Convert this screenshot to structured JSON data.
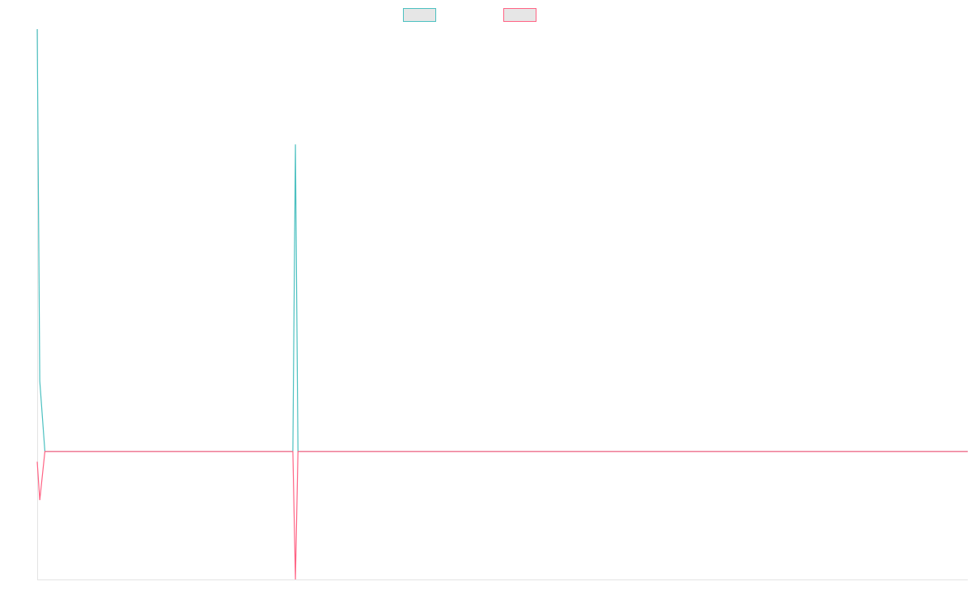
{
  "chart_data": {
    "type": "line",
    "title": "",
    "xlabel": "",
    "ylabel": "",
    "grid": false,
    "legend": "top-center",
    "x_count": 365,
    "ylim": [
      -1,
      3.3
    ],
    "series": [
      {
        "color": "#4bc0c0",
        "legend_fill": "#e6e6e6",
        "points": [
          [
            0,
            3.3
          ],
          [
            1,
            0.55
          ],
          [
            3,
            0
          ],
          [
            99,
            0
          ],
          [
            100,
            0
          ],
          [
            101,
            2.4
          ],
          [
            102,
            0
          ],
          [
            364,
            0
          ]
        ]
      },
      {
        "color": "#ff6384",
        "legend_fill": "#e6e6e6",
        "points": [
          [
            0,
            -0.08
          ],
          [
            1,
            -0.38
          ],
          [
            3,
            0
          ],
          [
            99,
            0
          ],
          [
            100,
            0
          ],
          [
            101,
            -1.0
          ],
          [
            102,
            0
          ],
          [
            364,
            0
          ]
        ]
      }
    ]
  }
}
